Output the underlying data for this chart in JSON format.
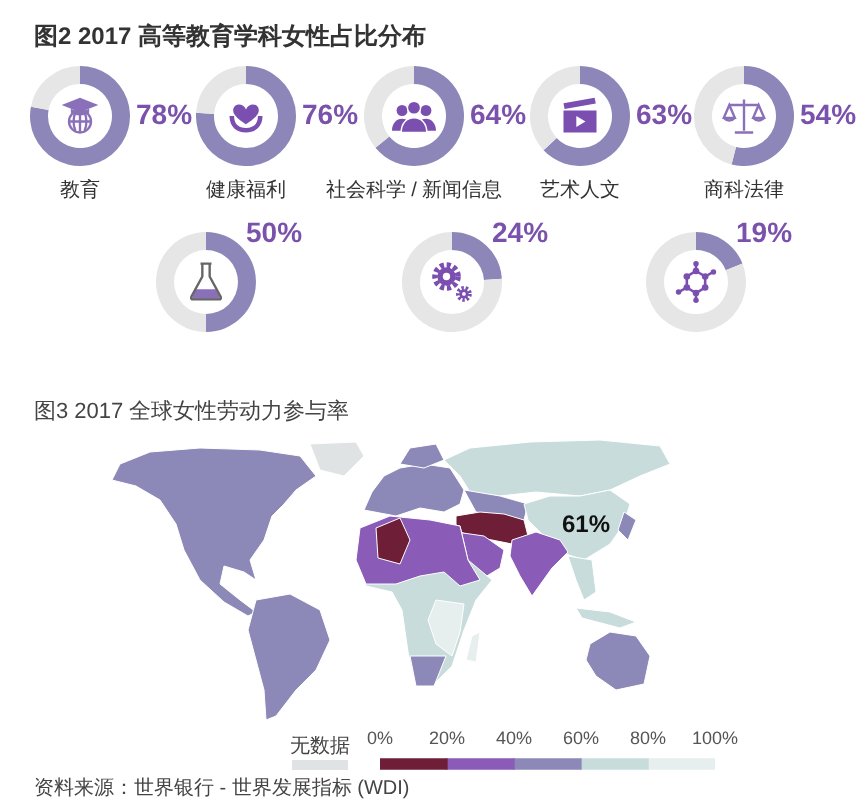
{
  "chart_data": [
    {
      "type": "donut",
      "title": "图2 2017 高等教育学科女性占比分布",
      "categories": [
        "教育",
        null
      ],
      "values": [
        78,
        22
      ],
      "colors": [
        "#8c87b8",
        "#e6e6e6"
      ],
      "value_labels": [
        "78%",
        null
      ]
    },
    {
      "type": "donut",
      "categories": [
        "健康福利",
        null
      ],
      "values": [
        76,
        24
      ],
      "colors": [
        "#8c87b8",
        "#e6e6e6"
      ],
      "value_labels": [
        "76%",
        null
      ]
    },
    {
      "type": "donut",
      "categories": [
        "社会科学 / 新闻信息",
        null
      ],
      "values": [
        64,
        36
      ],
      "colors": [
        "#8c87b8",
        "#e6e6e6"
      ],
      "value_labels": [
        "64%",
        null
      ]
    },
    {
      "type": "donut",
      "categories": [
        "艺术人文",
        null
      ],
      "values": [
        63,
        37
      ],
      "colors": [
        "#8c87b8",
        "#e6e6e6"
      ],
      "value_labels": [
        "63%",
        null
      ]
    },
    {
      "type": "donut",
      "categories": [
        "商科法律",
        null
      ],
      "values": [
        54,
        46
      ],
      "colors": [
        "#8c87b8",
        "#e6e6e6"
      ],
      "value_labels": [
        "54%",
        null
      ]
    },
    {
      "type": "donut",
      "categories": [
        null,
        null
      ],
      "values": [
        50,
        50
      ],
      "colors": [
        "#8c87b8",
        "#e6e6e6"
      ],
      "value_labels": [
        "50%",
        null
      ]
    },
    {
      "type": "donut",
      "categories": [
        null,
        null
      ],
      "values": [
        24,
        76
      ],
      "colors": [
        "#8c87b8",
        "#e6e6e6"
      ],
      "value_labels": [
        "24%",
        null
      ]
    },
    {
      "type": "donut",
      "categories": [
        null,
        null
      ],
      "values": [
        19,
        81
      ],
      "colors": [
        "#8c87b8",
        "#e6e6e6"
      ],
      "value_labels": [
        "19%",
        null
      ]
    },
    {
      "type": "other",
      "title": "图3 2017 全球女性劳动力参与率",
      "annotations": [
        "61%",
        "无数据",
        "资料来源：世界银行 - 世界发展指标 (WDI)"
      ],
      "colors": [
        "#dfe3e3",
        "#6e1e36",
        "#8a5cb8",
        "#8c88b8",
        "#c8dcdc",
        "#e6eeee"
      ]
    },
    {
      "type": "bar",
      "orientation": "horizontal",
      "stacked": true,
      "categories": [
        null
      ],
      "series": [
        {
          "color": "#6e1e36",
          "values": [
            20
          ]
        },
        {
          "color": "#8a5cb8",
          "values": [
            20
          ]
        },
        {
          "color": "#8c88b8",
          "values": [
            20
          ]
        },
        {
          "color": "#c8dcdc",
          "values": [
            20
          ]
        },
        {
          "color": "#e6eeee",
          "values": [
            20
          ]
        }
      ],
      "xlim": [
        0,
        100
      ],
      "xticks": [
        {
          "value": 0,
          "label": "0%"
        },
        {
          "value": 20,
          "label": "20%"
        },
        {
          "value": 40,
          "label": "40%"
        },
        {
          "value": 60,
          "label": "60%"
        },
        {
          "value": 80,
          "label": "80%"
        },
        {
          "value": 100,
          "label": "100%"
        }
      ]
    }
  ]
}
